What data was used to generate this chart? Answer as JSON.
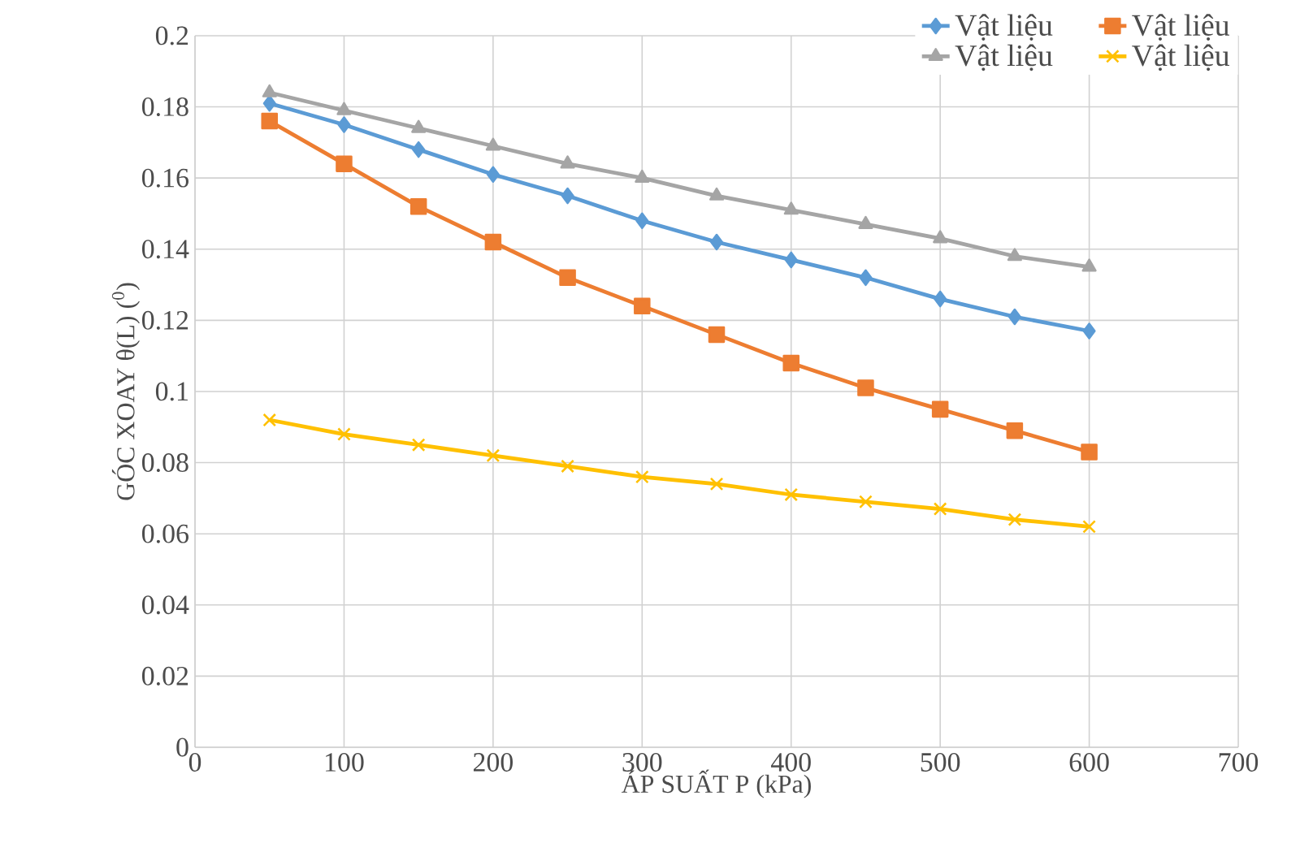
{
  "chart_data": {
    "type": "line",
    "xlabel": "ÁP SUẤT P (kPa)",
    "ylabel": "GÓC XOAY θ(L) ($^{0}$)",
    "x": [
      50,
      100,
      150,
      200,
      250,
      300,
      350,
      400,
      450,
      500,
      550,
      600
    ],
    "series": [
      {
        "name": "Vật liệu",
        "color": "#5b9bd5",
        "marker": "diamond",
        "values": [
          0.181,
          0.175,
          0.168,
          0.161,
          0.155,
          0.148,
          0.142,
          0.137,
          0.132,
          0.126,
          0.121,
          0.117
        ]
      },
      {
        "name": "Vật liệu",
        "color": "#ed7d31",
        "marker": "square",
        "values": [
          0.176,
          0.164,
          0.152,
          0.142,
          0.132,
          0.124,
          0.116,
          0.108,
          0.101,
          0.095,
          0.089,
          0.083
        ]
      },
      {
        "name": "Vật liệu",
        "color": "#a5a5a5",
        "marker": "triangle",
        "values": [
          0.184,
          0.179,
          0.174,
          0.169,
          0.164,
          0.16,
          0.155,
          0.151,
          0.147,
          0.143,
          0.138,
          0.135
        ]
      },
      {
        "name": "Vật liệu",
        "color": "#ffc000",
        "marker": "cross",
        "values": [
          0.092,
          0.088,
          0.085,
          0.082,
          0.079,
          0.076,
          0.074,
          0.071,
          0.069,
          0.067,
          0.064,
          0.062
        ]
      }
    ],
    "xlim": [
      0,
      700
    ],
    "xticks": [
      0,
      100,
      200,
      300,
      400,
      500,
      600,
      700
    ],
    "ylim": [
      0,
      0.2
    ],
    "yticks": [
      0,
      0.02,
      0.04,
      0.06,
      0.08,
      0.1,
      0.12,
      0.14,
      0.16,
      0.18,
      0.2
    ],
    "grid": true,
    "legend": "top right",
    "line_style": "solid"
  }
}
